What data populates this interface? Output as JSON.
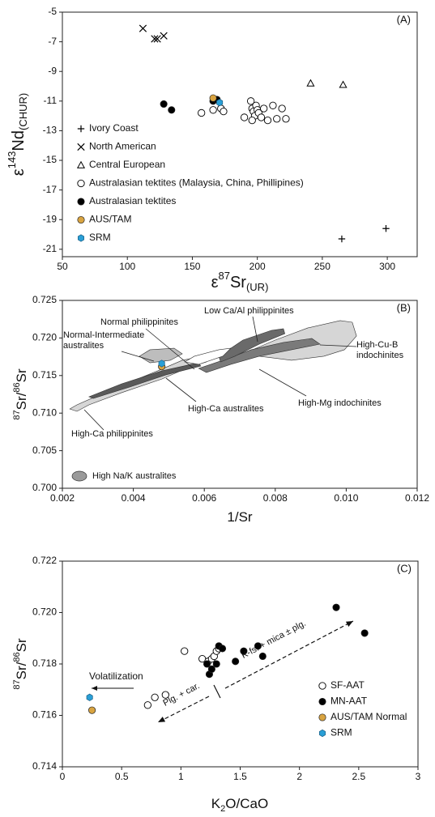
{
  "chart_data": [
    {
      "type": "scatter",
      "panel": "(A)",
      "xlabel": [
        "ε",
        "87",
        "Sr",
        "(UR)"
      ],
      "ylabel": [
        "ε",
        "143",
        "Nd",
        "(CHUR)"
      ],
      "xlim": [
        50,
        323
      ],
      "ylim": [
        -21.5,
        -5
      ],
      "xticks": [
        50,
        100,
        150,
        200,
        250,
        300
      ],
      "yticks": [
        -5,
        -7,
        -9,
        -11,
        -13,
        -15,
        -17,
        -19,
        -21
      ],
      "series": [
        {
          "name": "Ivory Coast",
          "marker": "plus",
          "color": "#000000",
          "x": [
            265,
            299
          ],
          "y": [
            -20.3,
            -19.6
          ]
        },
        {
          "name": "North American",
          "marker": "cross",
          "color": "#000000",
          "x": [
            112,
            121,
            123,
            128
          ],
          "y": [
            -6.1,
            -6.8,
            -6.8,
            -6.6
          ]
        },
        {
          "name": "Central European",
          "marker": "triangle",
          "color": "#000000",
          "x": [
            241,
            266
          ],
          "y": [
            -9.8,
            -9.9
          ]
        },
        {
          "name": "Australasian tektites (Malaysia, China, Phillipines)",
          "marker": "open-circle",
          "color": "#000000",
          "x": [
            157,
            166,
            172,
            174,
            195,
            196,
            197,
            198,
            199,
            200,
            201,
            203,
            205,
            208,
            212,
            215,
            219,
            222,
            190,
            196
          ],
          "y": [
            -11.8,
            -11.6,
            -11.5,
            -11.7,
            -11.0,
            -11.5,
            -11.7,
            -12.0,
            -11.3,
            -11.6,
            -11.8,
            -12.1,
            -11.5,
            -12.3,
            -11.3,
            -12.2,
            -11.5,
            -12.2,
            -12.1,
            -12.3
          ]
        },
        {
          "name": "Australasian tektites",
          "marker": "circle",
          "color": "#000000",
          "x": [
            128,
            134,
            166,
            169
          ],
          "y": [
            -11.2,
            -11.6,
            -11.0,
            -10.9
          ]
        },
        {
          "name": "AUS/TAM",
          "marker": "circle",
          "color": "#d9a441",
          "x": [
            166
          ],
          "y": [
            -10.8
          ]
        },
        {
          "name": "SRM",
          "marker": "hexagon",
          "color": "#2a9fd6",
          "x": [
            171
          ],
          "y": [
            -11.1
          ]
        }
      ]
    },
    {
      "type": "scatter",
      "panel": "(B)",
      "xlabel": [
        "1/Sr"
      ],
      "ylabel": [
        "87",
        "Sr/",
        "86",
        "Sr"
      ],
      "xlim": [
        0.002,
        0.012
      ],
      "ylim": [
        0.7,
        0.725
      ],
      "xticks": [
        0.002,
        0.004,
        0.006,
        0.008,
        {
          "value": 0.01,
          "label": "0.010"
        },
        0.012
      ],
      "yticks": [
        {
          "value": 0.7,
          "label": "0.700"
        },
        0.705,
        {
          "value": 0.71,
          "label": "0.710"
        },
        0.715,
        {
          "value": 0.72,
          "label": "0.720"
        },
        0.725
      ],
      "series": [
        {
          "name": "High-Cu-B indochinites",
          "marker": "region",
          "color": "#d6d6d6",
          "x": [
            0.00709,
            0.008,
            0.00892,
            0.00983,
            0.01017,
            0.01029,
            0.00995,
            0.00937,
            0.00846,
            0.00755
          ],
          "y": [
            0.71789,
            0.71972,
            0.72134,
            0.72231,
            0.72209,
            0.72026,
            0.71843,
            0.71757,
            0.71703,
            0.71757
          ]
        },
        {
          "name": "High-Ca philippinites",
          "marker": "region",
          "color": "#d6d6d6",
          "x": [
            0.00221,
            0.00241,
            0.00344,
            0.00469,
            0.00538,
            0.00595,
            0.00606,
            0.00549,
            0.00481,
            0.00367,
            0.00275,
            0.00241
          ],
          "y": [
            0.71056,
            0.7111,
            0.71325,
            0.71563,
            0.71703,
            0.71757,
            0.71681,
            0.71595,
            0.71455,
            0.71272,
            0.7111,
            0.71024
          ]
        },
        {
          "name": "Normal-Intermediate australites",
          "marker": "region",
          "color": "#bdbdbd",
          "x": [
            0.00417,
            0.00447,
            0.00515,
            0.00538,
            0.00504,
            0.00447
          ],
          "y": [
            0.71757,
            0.71843,
            0.71864,
            0.71789,
            0.71703,
            0.7167
          ]
        },
        {
          "name": "High-Ca australites",
          "marker": "region",
          "color": "#5a5a5a",
          "x": [
            0.00275,
            0.00367,
            0.00481,
            0.00584,
            0.0059,
            0.00492,
            0.0039,
            0.00287
          ],
          "y": [
            0.71218,
            0.7139,
            0.71563,
            0.7167,
            0.71627,
            0.71509,
            0.71347,
            0.71196
          ]
        },
        {
          "name": "High-Mg indochinites",
          "marker": "region",
          "color": "#7a7a7a",
          "x": [
            0.00584,
            0.00652,
            0.00732,
            0.00823,
            0.00903,
            0.00926,
            0.00846,
            0.00755,
            0.00675,
            0.00606
          ],
          "y": [
            0.71595,
            0.71703,
            0.71843,
            0.7194,
            0.71994,
            0.71918,
            0.71843,
            0.71757,
            0.71649,
            0.71541
          ]
        },
        {
          "name": "Low Ca/Al  philippinites",
          "marker": "region",
          "color": "#6a6a6a",
          "x": [
            0.00641,
            0.00709,
            0.00789,
            0.00823,
            0.00827,
            0.00755,
            0.00686,
            0.00646
          ],
          "y": [
            0.71757,
            0.71972,
            0.72101,
            0.72123,
            0.72058,
            0.71918,
            0.71757,
            0.71681
          ]
        },
        {
          "name": "Normal philippinites",
          "marker": "region",
          "color": "#ffffff",
          "x": [
            0.00545,
            0.00572,
            0.00641,
            0.00675,
            0.00652,
            0.00584
          ],
          "y": [
            0.71681,
            0.71757,
            0.71843,
            0.71864,
            0.71757,
            0.71649
          ]
        },
        {
          "marker": "circle",
          "color": "#d9a441",
          "x": [
            0.0048
          ],
          "y": [
            0.7162
          ]
        },
        {
          "marker": "hexagon",
          "color": "#2a9fd6",
          "x": [
            0.0048
          ],
          "y": [
            0.7166
          ]
        }
      ],
      "legend_items": [
        {
          "name": "High Na/K australites",
          "color": "#9a9a9a"
        }
      ]
    },
    {
      "type": "scatter",
      "panel": "(C)",
      "xlabel": [
        "K",
        "2",
        "O/CaO"
      ],
      "ylabel": [
        "87",
        "Sr/",
        "86",
        "Sr"
      ],
      "xlim": [
        0,
        3
      ],
      "ylim": [
        0.714,
        0.722
      ],
      "xticks": [
        0,
        0.5,
        1,
        1.5,
        2,
        2.5,
        3
      ],
      "yticks": [
        0.714,
        0.716,
        0.718,
        {
          "value": 0.72,
          "label": "0.720"
        },
        0.722
      ],
      "series": [
        {
          "name": "SF-AAT",
          "marker": "open-circle",
          "color": "#000000",
          "x": [
            0.72,
            0.78,
            0.87,
            1.03,
            1.18,
            1.23,
            1.26,
            1.28,
            1.3,
            1.32
          ],
          "y": [
            0.7164,
            0.7167,
            0.7168,
            0.7185,
            0.7182,
            0.7181,
            0.7182,
            0.7183,
            0.7185,
            0.7186
          ]
        },
        {
          "name": "MN-AAT",
          "marker": "circle",
          "color": "#000000",
          "x": [
            1.22,
            1.24,
            1.26,
            1.3,
            1.32,
            1.35,
            1.46,
            1.53,
            1.65,
            1.69,
            2.31,
            2.55
          ],
          "y": [
            0.718,
            0.7176,
            0.7178,
            0.718,
            0.7187,
            0.7186,
            0.7181,
            0.7185,
            0.7187,
            0.7183,
            0.7202,
            0.7192
          ]
        },
        {
          "name": "AUS/TAM Normal",
          "marker": "circle",
          "color": "#d9a441",
          "x": [
            0.25
          ],
          "y": [
            0.7162
          ]
        },
        {
          "name": "SRM",
          "marker": "hexagon",
          "color": "#2a9fd6",
          "x": [
            0.23
          ],
          "y": [
            0.7167
          ]
        }
      ],
      "annotations": [
        "Volatilization",
        "Plg. + car.",
        "K-fs. + mica ± plg."
      ]
    }
  ]
}
